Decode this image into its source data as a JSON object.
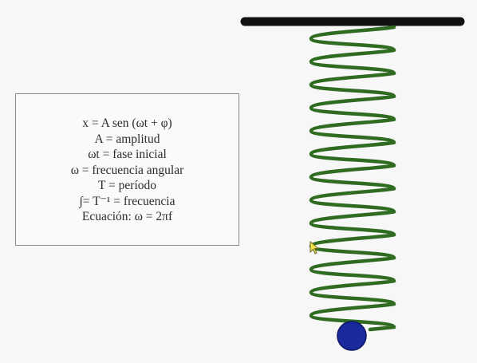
{
  "formulas": {
    "line1": "x = A  sen (ωt + φ)",
    "line2": "A = amplitud",
    "line3": "ωt = fase inicial",
    "line4": "ω = frecuencia angular",
    "line5": "T = período",
    "line6": "∫=  T⁻¹ = frecuencia",
    "line7": "Ecuación: ω = 2πf"
  },
  "colors": {
    "spring": "#2f6b20",
    "ceiling": "#111111",
    "mass": "#1a2a9c",
    "cursor": "#f2e24a"
  }
}
